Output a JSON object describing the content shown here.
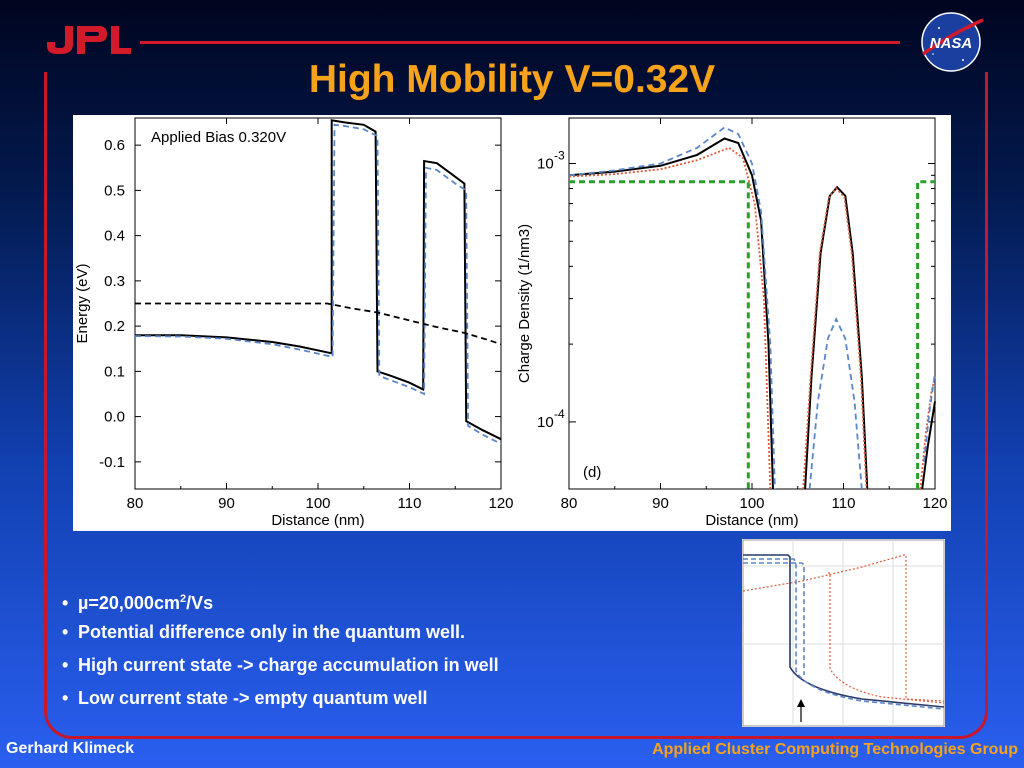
{
  "slide": {
    "title": "High Mobility V=0.32V",
    "logo_left": "JPL",
    "logo_right": "NASA",
    "bullets": [
      {
        "prefix": "µ=20,000cm",
        "sup": "2",
        "suffix": "/Vs"
      },
      {
        "text": "Potential difference only in the quantum well."
      },
      {
        "text": "High current state -> charge accumulation in well"
      },
      {
        "text": "Low current state -> empty quantum well"
      }
    ],
    "footer_left": "Gerhard Klimeck",
    "footer_right": "Applied Cluster Computing Technologies Group",
    "colors": {
      "title": "#f7a21b",
      "frame": "#c8172a",
      "footer_right": "#f7a21b"
    }
  },
  "chart_data": [
    {
      "type": "line",
      "annotation": "Applied Bias 0.320V",
      "xlabel": "Distance (nm)",
      "ylabel": "Energy (eV)",
      "xlim": [
        80,
        120
      ],
      "ylim": [
        -0.16,
        0.66
      ],
      "x_ticks": [
        "80",
        "90",
        "100",
        "110",
        "120"
      ],
      "y_ticks": [
        "-0.1",
        "0.0",
        "0.1",
        "0.2",
        "0.3",
        "0.4",
        "0.5",
        "0.6"
      ],
      "series": [
        {
          "style": "solid",
          "color": "#000000",
          "points": [
            [
              80,
              0.18
            ],
            [
              85,
              0.18
            ],
            [
              90,
              0.175
            ],
            [
              95,
              0.165
            ],
            [
              98,
              0.155
            ],
            [
              101.5,
              0.14
            ],
            [
              101.5,
              0.655
            ],
            [
              103,
              0.65
            ],
            [
              105,
              0.645
            ],
            [
              106.3,
              0.63
            ],
            [
              106.5,
              0.1
            ],
            [
              108,
              0.09
            ],
            [
              110,
              0.075
            ],
            [
              111.5,
              0.06
            ],
            [
              111.6,
              0.565
            ],
            [
              113,
              0.56
            ],
            [
              115,
              0.53
            ],
            [
              116,
              0.515
            ],
            [
              116.2,
              -0.01
            ],
            [
              118,
              -0.03
            ],
            [
              120,
              -0.05
            ]
          ]
        },
        {
          "style": "dashed",
          "color": "#5b86c8",
          "points": [
            [
              80,
              0.178
            ],
            [
              85,
              0.177
            ],
            [
              90,
              0.172
            ],
            [
              95,
              0.16
            ],
            [
              98,
              0.148
            ],
            [
              101.6,
              0.132
            ],
            [
              101.8,
              0.645
            ],
            [
              103,
              0.642
            ],
            [
              105,
              0.635
            ],
            [
              106.5,
              0.62
            ],
            [
              106.7,
              0.09
            ],
            [
              108,
              0.08
            ],
            [
              110,
              0.065
            ],
            [
              111.6,
              0.05
            ],
            [
              111.8,
              0.55
            ],
            [
              113,
              0.545
            ],
            [
              115,
              0.515
            ],
            [
              116.2,
              0.5
            ],
            [
              116.4,
              -0.02
            ],
            [
              118,
              -0.04
            ],
            [
              120,
              -0.06
            ]
          ]
        },
        {
          "style": "dashed",
          "color": "#000000",
          "points": [
            [
              80,
              0.25
            ],
            [
              85,
              0.25
            ],
            [
              90,
              0.25
            ],
            [
              95,
              0.25
            ],
            [
              101,
              0.25
            ],
            [
              103.5,
              0.24
            ],
            [
              106.5,
              0.23
            ],
            [
              109.5,
              0.215
            ],
            [
              112.5,
              0.2
            ],
            [
              116,
              0.185
            ],
            [
              118.5,
              0.17
            ],
            [
              120,
              0.16
            ]
          ]
        }
      ]
    },
    {
      "type": "line",
      "annotation": "(d)",
      "xlabel": "Distance (nm)",
      "ylabel": "Charge Density (1/nm3)",
      "xlim": [
        80,
        120
      ],
      "yscale": "log",
      "ylim": [
        5.5e-05,
        0.0015
      ],
      "x_ticks": [
        "80",
        "90",
        "100",
        "110",
        "120"
      ],
      "y_ticks": [
        {
          "base": "10",
          "exp": "-3"
        },
        {
          "base": "10",
          "exp": "-4"
        }
      ],
      "series": [
        {
          "style": "solid",
          "color": "#000000",
          "points": [
            [
              80,
              0.0009
            ],
            [
              85,
              0.00093
            ],
            [
              90,
              0.00098
            ],
            [
              94,
              0.00108
            ],
            [
              97,
              0.00125
            ],
            [
              98.5,
              0.0012
            ],
            [
              100,
              0.0009
            ],
            [
              101,
              0.0006
            ],
            [
              101.8,
              0.0002
            ],
            [
              102.3,
              5.5e-05
            ]
          ]
        },
        {
          "style": "dotted",
          "color": "#e05a3a",
          "points": [
            [
              80,
              0.00089
            ],
            [
              85,
              0.00091
            ],
            [
              90,
              0.00095
            ],
            [
              94,
              0.00103
            ],
            [
              97.5,
              0.00115
            ],
            [
              99,
              0.00105
            ],
            [
              100.3,
              0.0007
            ],
            [
              101.3,
              0.0003
            ],
            [
              102,
              5.5e-05
            ]
          ]
        },
        {
          "style": "dashed",
          "color": "#5b86c8",
          "points": [
            [
              80,
              0.0009
            ],
            [
              85,
              0.00094
            ],
            [
              90,
              0.001
            ],
            [
              94,
              0.00115
            ],
            [
              97,
              0.00138
            ],
            [
              98.5,
              0.0013
            ],
            [
              100,
              0.001
            ],
            [
              101,
              0.00065
            ],
            [
              102,
              0.0002
            ],
            [
              102.5,
              5.5e-05
            ]
          ]
        },
        {
          "style": "solid",
          "color": "#000000",
          "points": [
            [
              105.8,
              5.5e-05
            ],
            [
              106.5,
              0.00015
            ],
            [
              107.5,
              0.00045
            ],
            [
              108.5,
              0.00075
            ],
            [
              109.3,
              0.00081
            ],
            [
              110.2,
              0.00075
            ],
            [
              111,
              0.00045
            ],
            [
              112,
              0.00015
            ],
            [
              112.6,
              5.5e-05
            ]
          ]
        },
        {
          "style": "dotted",
          "color": "#e05a3a",
          "points": [
            [
              105.6,
              5.5e-05
            ],
            [
              106.4,
              0.00015
            ],
            [
              107.4,
              0.00045
            ],
            [
              108.4,
              0.00074
            ],
            [
              109.2,
              0.0008
            ],
            [
              110.1,
              0.00074
            ],
            [
              110.9,
              0.00045
            ],
            [
              111.9,
              0.00015
            ],
            [
              112.5,
              5.5e-05
            ]
          ]
        },
        {
          "style": "dashed",
          "color": "#5b86c8",
          "points": [
            [
              106.3,
              5.5e-05
            ],
            [
              107.2,
              0.00012
            ],
            [
              108.3,
              0.00021
            ],
            [
              109.2,
              0.00025
            ],
            [
              110.2,
              0.00021
            ],
            [
              111.2,
              0.00012
            ],
            [
              112,
              5.5e-05
            ]
          ]
        },
        {
          "style": "dashed",
          "color": "#2aa02a",
          "points": [
            [
              80,
              0.00085
            ],
            [
              99.6,
              0.00085
            ],
            [
              99.6,
              5.5e-05
            ]
          ]
        },
        {
          "style": "dashed",
          "color": "#2aa02a",
          "points": [
            [
              118.1,
              5.5e-05
            ],
            [
              118.1,
              0.00085
            ],
            [
              120,
              0.00085
            ]
          ]
        },
        {
          "style": "solid",
          "color": "#000000",
          "points": [
            [
              118.6,
              5.5e-05
            ],
            [
              119.2,
              8e-05
            ],
            [
              120,
              0.00012
            ]
          ]
        },
        {
          "style": "dotted",
          "color": "#e05a3a",
          "points": [
            [
              118.4,
              5.5e-05
            ],
            [
              119,
              9e-05
            ],
            [
              119.6,
              0.00013
            ],
            [
              120,
              0.00015
            ]
          ]
        },
        {
          "style": "dashed",
          "color": "#5b86c8",
          "points": [
            [
              118.8,
              7e-05
            ],
            [
              119.4,
              0.00011
            ],
            [
              120,
              0.000155
            ]
          ]
        }
      ]
    }
  ]
}
